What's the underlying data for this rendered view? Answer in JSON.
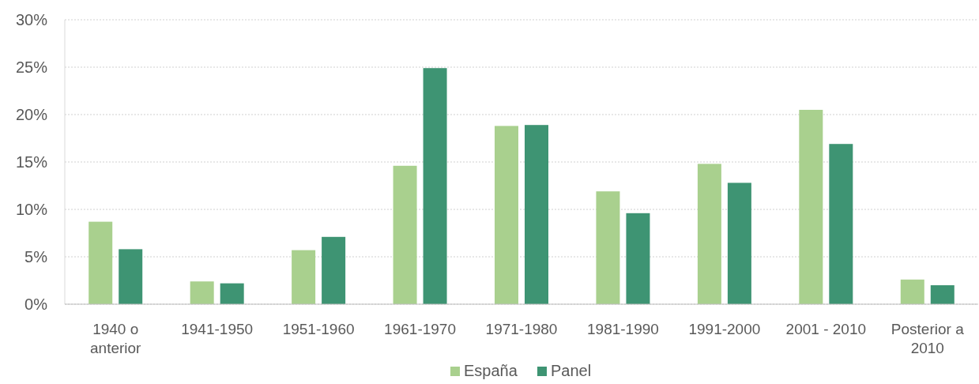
{
  "chart_data": {
    "type": "bar",
    "categories": [
      "1940 o anterior",
      "1941-1950",
      "1951-1960",
      "1961-1970",
      "1971-1980",
      "1981-1990",
      "1991-2000",
      "2001 - 2010",
      "Posterior a 2010"
    ],
    "series": [
      {
        "name": "España",
        "color": "#a9d08e",
        "values": [
          8.7,
          2.4,
          5.7,
          14.6,
          18.8,
          11.9,
          14.8,
          20.5,
          2.6
        ]
      },
      {
        "name": "Panel",
        "color": "#3e9473",
        "values": [
          5.8,
          2.2,
          7.1,
          24.9,
          18.9,
          9.6,
          12.8,
          16.9,
          2.0
        ]
      }
    ],
    "ylim": [
      0,
      30
    ],
    "yticks": [
      {
        "value": 0,
        "label": "0%"
      },
      {
        "value": 5,
        "label": "5%"
      },
      {
        "value": 10,
        "label": "10%"
      },
      {
        "value": 15,
        "label": "15%"
      },
      {
        "value": 20,
        "label": "20%"
      },
      {
        "value": 25,
        "label": "25%"
      },
      {
        "value": 30,
        "label": "30%"
      }
    ],
    "grid": "y",
    "legend": "bottom"
  }
}
